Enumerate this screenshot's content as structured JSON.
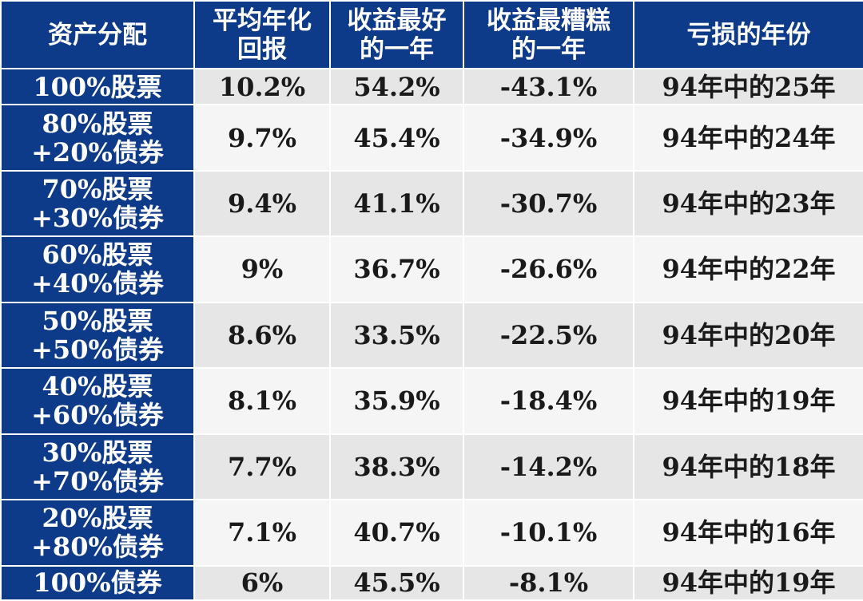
{
  "table": {
    "headers": [
      {
        "lines": [
          "资产分配"
        ]
      },
      {
        "lines": [
          "平均年化",
          "回报"
        ]
      },
      {
        "lines": [
          "收益最好",
          "的一年"
        ]
      },
      {
        "lines": [
          "收益最糟糕",
          "的一年"
        ]
      },
      {
        "lines": [
          "亏损的年份"
        ]
      }
    ],
    "rows": [
      {
        "allocation": [
          "100%股票"
        ],
        "avg_return": "10.2%",
        "best_year": "54.2%",
        "worst_year": "-43.1%",
        "loss_years": "94年中的25年"
      },
      {
        "allocation": [
          "80%股票",
          "+20%债券"
        ],
        "avg_return": "9.7%",
        "best_year": "45.4%",
        "worst_year": "-34.9%",
        "loss_years": "94年中的24年"
      },
      {
        "allocation": [
          "70%股票",
          "+30%债券"
        ],
        "avg_return": "9.4%",
        "best_year": "41.1%",
        "worst_year": "-30.7%",
        "loss_years": "94年中的23年"
      },
      {
        "allocation": [
          "60%股票",
          "+40%债券"
        ],
        "avg_return": "9%",
        "best_year": "36.7%",
        "worst_year": "-26.6%",
        "loss_years": "94年中的22年"
      },
      {
        "allocation": [
          "50%股票",
          "+50%债券"
        ],
        "avg_return": "8.6%",
        "best_year": "33.5%",
        "worst_year": "-22.5%",
        "loss_years": "94年中的20年"
      },
      {
        "allocation": [
          "40%股票",
          "+60%债券"
        ],
        "avg_return": "8.1%",
        "best_year": "35.9%",
        "worst_year": "-18.4%",
        "loss_years": "94年中的19年"
      },
      {
        "allocation": [
          "30%股票",
          "+70%债券"
        ],
        "avg_return": "7.7%",
        "best_year": "38.3%",
        "worst_year": "-14.2%",
        "loss_years": "94年中的18年"
      },
      {
        "allocation": [
          "20%股票",
          "+80%债券"
        ],
        "avg_return": "7.1%",
        "best_year": "40.7%",
        "worst_year": "-10.1%",
        "loss_years": "94年中的16年"
      },
      {
        "allocation": [
          "100%债券"
        ],
        "avg_return": "6%",
        "best_year": "45.5%",
        "worst_year": "-8.1%",
        "loss_years": "94年中的19年"
      }
    ]
  },
  "colors": {
    "header_bg": "#0e3a8a",
    "header_text": "#ffffff",
    "row_shade": "#e6e6e6",
    "row_light": "#f5f5f5",
    "value_text": "#1a1a1a"
  }
}
